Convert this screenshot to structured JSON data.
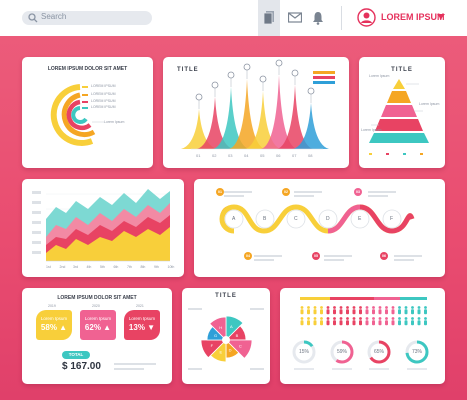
{
  "search": {
    "placeholder": "Search",
    "icon": "search-icon"
  },
  "toolbar": {
    "icons": [
      "document-icon",
      "mail-icon",
      "bell-icon"
    ]
  },
  "user": {
    "name": "LOREM IPSUM",
    "icon": "user-icon"
  },
  "colors": {
    "accent": "#e5315c",
    "yellow": "#f8cf3a",
    "orange": "#f5a623",
    "pink": "#f06292",
    "red": "#e84363",
    "teal": "#3dc7c1",
    "blue": "#2f9fd8"
  },
  "panel_radial": {
    "title": "LOREM IPSUM DOLOR SIT AMET",
    "series": [
      {
        "label": "LOREM IPSUM",
        "color": "#f8cf3a"
      },
      {
        "label": "LOREM IPSUM",
        "color": "#f5a623"
      },
      {
        "label": "LOREM IPSUM",
        "color": "#e84363"
      },
      {
        "label": "LOREM IPSUM",
        "color": "#3dc7c1"
      }
    ],
    "side_label": "Lorem Ipsum"
  },
  "panel_peaks": {
    "title": "TITLE",
    "ticks": [
      "01",
      "02",
      "03",
      "04",
      "05",
      "06",
      "07",
      "08"
    ]
  },
  "panel_pyramid": {
    "title": "TITLE",
    "labels": [
      "Lorem Ipsum",
      "Lorem Ipsum",
      "Lorem Ipsum"
    ]
  },
  "panel_area": {
    "x_ticks": [
      "1st",
      "2nd",
      "3rd",
      "4th",
      "5th",
      "6th",
      "7th",
      "8th",
      "9th",
      "10th"
    ]
  },
  "panel_timeline": {
    "badges": [
      "01",
      "02",
      "03",
      "04",
      "05",
      "06"
    ],
    "letters": [
      "A",
      "B",
      "C",
      "D",
      "E",
      "F"
    ]
  },
  "panel_kpi": {
    "title": "LOREM IPSUM DOLOR SIT AMET",
    "cards": [
      {
        "year": "2019",
        "label": "Lorem Ipsum",
        "value": "58% ▲"
      },
      {
        "year": "2020",
        "label": "Lorem Ipsum",
        "value": "62% ▲"
      },
      {
        "year": "2021",
        "label": "Lorem Ipsum",
        "value": "13% ▼"
      }
    ],
    "total_label": "TOTAL",
    "total_value": "$ 167.00"
  },
  "panel_pie": {
    "title": "TITLE",
    "slice_labels": [
      "A",
      "B",
      "C",
      "D",
      "E",
      "F",
      "G",
      "H"
    ]
  },
  "panel_people": {
    "rings": [
      {
        "value": "15%",
        "color": "#3dc7c1"
      },
      {
        "value": "59%",
        "color": "#f06292"
      },
      {
        "value": "65%",
        "color": "#e84363"
      },
      {
        "value": "73%",
        "color": "#3dc7c1"
      }
    ]
  }
}
